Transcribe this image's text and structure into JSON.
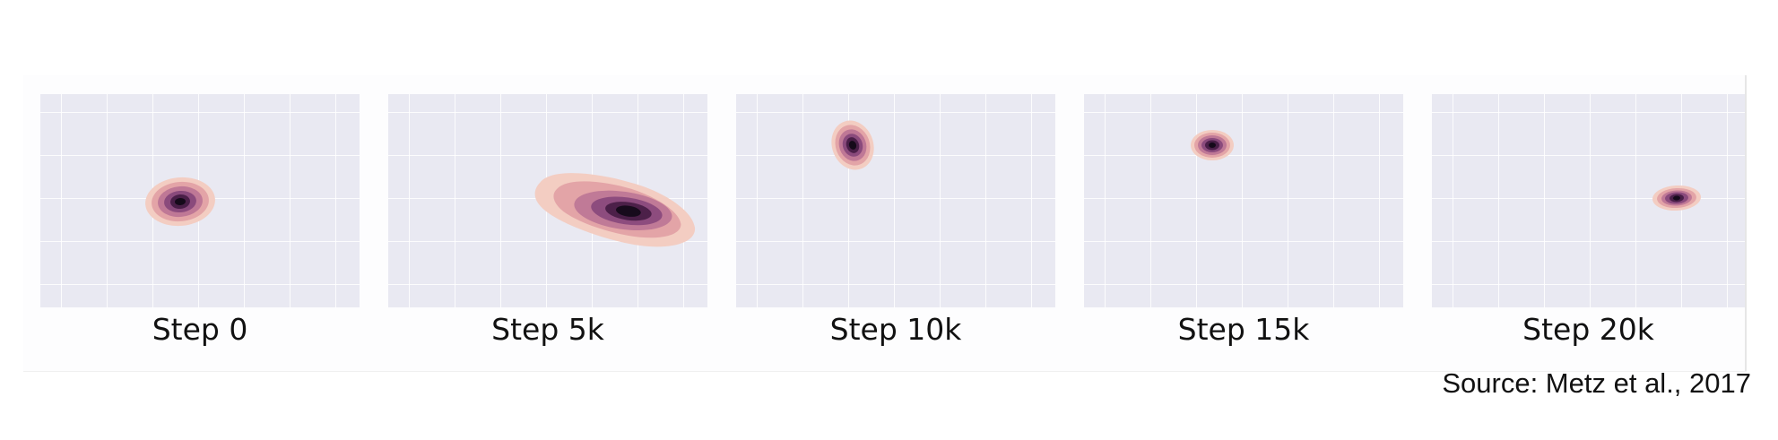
{
  "figure": {
    "panels": [
      {
        "label": "Step 0"
      },
      {
        "label": "Step 5k"
      },
      {
        "label": "Step 10k"
      },
      {
        "label": "Step 15k"
      },
      {
        "label": "Step 20k"
      }
    ],
    "source": "Source:  Metz et al., 2017"
  },
  "colors": {
    "panel_background": "#e9e9f2",
    "grid": "#ffffff",
    "density_outer": "#f2c7bd",
    "density_mid": "#b9718f",
    "density_core": "#1c0e22"
  }
}
